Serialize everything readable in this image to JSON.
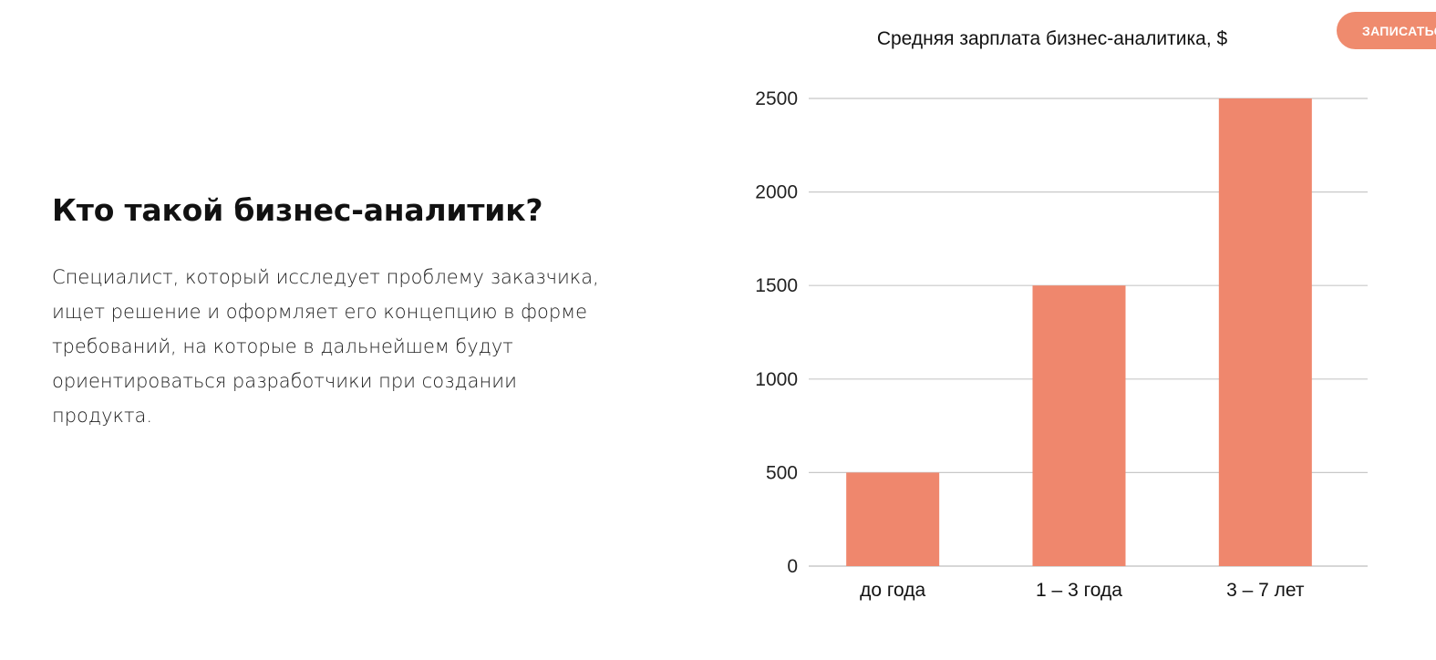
{
  "header": {
    "cta_label": "ЗАПИСАТЬСЯ"
  },
  "intro": {
    "title": "Кто такой бизнес-аналитик?",
    "description_lines": [
      "Специалист, который исследует проблему заказчика,",
      "ищет решение и оформляет его концепцию в форме",
      "требований, на которые в дальнейшем будут",
      "ориентироваться разработчики при создании",
      "продукта."
    ]
  },
  "colors": {
    "accent": "#ef8b6e",
    "bar": "#ef876d",
    "grid": "#c8c8c8"
  },
  "chart_data": {
    "type": "bar",
    "title": "Средняя зарплата  бизнес-аналитика, $",
    "categories": [
      "до года",
      "1 – 3 года",
      "3 – 7 лет"
    ],
    "values": [
      500,
      1500,
      2500
    ],
    "ylim": [
      0,
      2500
    ],
    "yticks": [
      0,
      500,
      1000,
      1500,
      2000,
      2500
    ],
    "xlabel": "",
    "ylabel": "",
    "grid": true,
    "legend": "none"
  }
}
